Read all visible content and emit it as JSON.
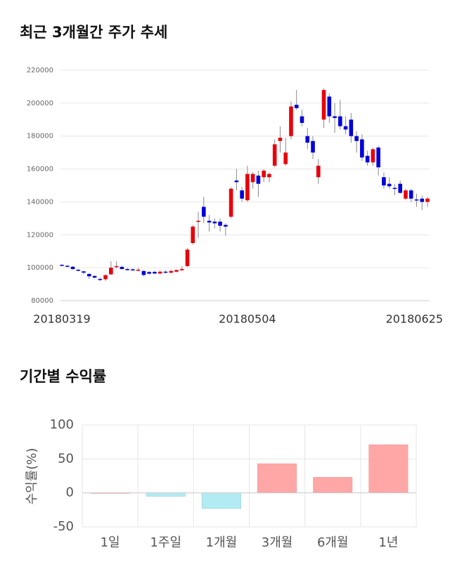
{
  "chart_data": [
    {
      "type": "candlestick",
      "title": "최근 3개월간 주가 추세",
      "categories": [
        "20180319",
        null,
        null,
        null,
        null,
        null,
        null,
        null,
        null,
        null,
        null,
        null,
        null,
        null,
        null,
        null,
        null,
        null,
        null,
        null,
        null,
        null,
        null,
        null,
        null,
        null,
        null,
        null,
        null,
        null,
        null,
        null,
        null,
        null,
        "20180504",
        null,
        null,
        null,
        null,
        null,
        null,
        null,
        null,
        null,
        null,
        null,
        null,
        null,
        null,
        null,
        null,
        null,
        null,
        null,
        null,
        null,
        null,
        null,
        null,
        null,
        null,
        null,
        null,
        null,
        null,
        null,
        null,
        "20180625"
      ],
      "open": [
        101800,
        101200,
        100600,
        98800,
        97800,
        96200,
        95000,
        93200,
        93000,
        96000,
        100400,
        100500,
        99200,
        99000,
        98500,
        98000,
        97400,
        97500,
        96500,
        97600,
        97000,
        97600,
        98500,
        101000,
        115000,
        128000,
        137000,
        128500,
        128000,
        128000,
        126000,
        131000,
        153000,
        147000,
        141000,
        152000,
        156000,
        155000,
        155000,
        162000,
        177000,
        163000,
        180000,
        199000,
        192000,
        180000,
        177000,
        155000,
        190000,
        204000,
        192000,
        192000,
        186000,
        190000,
        180000,
        178000,
        168000,
        164000,
        173000,
        155000,
        151000,
        148500,
        151000,
        142000,
        147000,
        141500,
        142000,
        140000
      ],
      "high": [
        102000,
        101500,
        101000,
        99200,
        98000,
        96800,
        95400,
        94000,
        96000,
        104000,
        104000,
        101500,
        99800,
        99600,
        100000,
        98500,
        98000,
        98200,
        98500,
        98500,
        98800,
        99000,
        101000,
        112000,
        126000,
        134000,
        143000,
        132000,
        130000,
        130000,
        127000,
        149000,
        160000,
        149000,
        162000,
        158000,
        159000,
        160000,
        158000,
        178000,
        186000,
        179000,
        201000,
        208000,
        196000,
        185000,
        180000,
        166000,
        209000,
        206000,
        200000,
        202000,
        192000,
        194000,
        183000,
        181000,
        171000,
        173000,
        174000,
        158000,
        155000,
        151000,
        153000,
        148000,
        148000,
        145000,
        144000,
        143000
      ],
      "low": [
        100800,
        100500,
        98800,
        97800,
        96000,
        93200,
        93500,
        92000,
        92000,
        95500,
        99500,
        99000,
        98200,
        98000,
        97800,
        94800,
        95800,
        96000,
        96000,
        96500,
        96500,
        97000,
        98000,
        100500,
        114000,
        118000,
        127000,
        122000,
        124000,
        122000,
        119500,
        130000,
        147000,
        140000,
        140000,
        148000,
        143000,
        152000,
        152000,
        161000,
        170000,
        162000,
        178000,
        196000,
        186000,
        172000,
        166000,
        151000,
        185000,
        188000,
        182000,
        184000,
        181000,
        176000,
        170000,
        165000,
        162000,
        162000,
        156000,
        148000,
        148000,
        144000,
        145000,
        141000,
        140000,
        137000,
        135000,
        137000
      ],
      "close": [
        101200,
        100800,
        99200,
        98200,
        97000,
        94800,
        94000,
        92600,
        95500,
        100000,
        101000,
        99200,
        98600,
        98500,
        98800,
        95600,
        96400,
        96500,
        97600,
        97200,
        98000,
        98600,
        99200,
        111000,
        125000,
        128500,
        131000,
        127500,
        127000,
        125500,
        125000,
        148000,
        152000,
        142000,
        157000,
        157000,
        151000,
        159000,
        157000,
        175000,
        179000,
        170000,
        198000,
        197000,
        188000,
        176000,
        170000,
        162000,
        208000,
        192000,
        191000,
        186000,
        184000,
        180000,
        177000,
        167000,
        164000,
        172000,
        161000,
        150000,
        149500,
        148000,
        145500,
        147000,
        142000,
        141000,
        140000,
        142000
      ],
      "up_color": "#e8000b",
      "down_color": "#0000d8",
      "ylim": [
        80000,
        220000
      ],
      "yticks": [
        80000,
        100000,
        120000,
        140000,
        160000,
        180000,
        200000,
        220000
      ],
      "grid": true
    },
    {
      "type": "bar",
      "title": "기간별 수익률",
      "ylabel": "수익률(%)",
      "categories": [
        "1일",
        "1주일",
        "1개월",
        "3개월",
        "6개월",
        "1년"
      ],
      "values": [
        0.3,
        -5,
        -23,
        43,
        23,
        71
      ],
      "positive_color": "#ffa7a7",
      "negative_color": "#b2ebf2",
      "ylim": [
        -50,
        100
      ],
      "yticks": [
        -50,
        0,
        50,
        100
      ],
      "grid": true
    }
  ]
}
